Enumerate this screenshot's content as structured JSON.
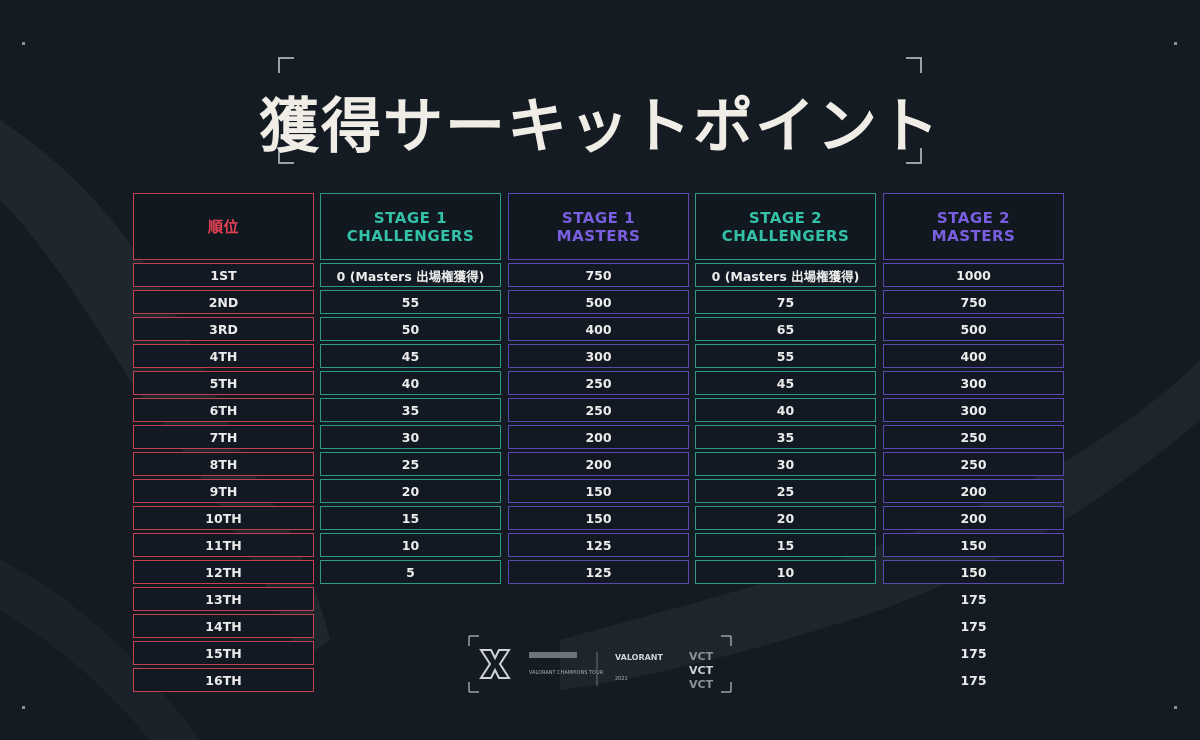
{
  "title": "獲得サーキットポイント",
  "colors": {
    "red": "#e94155",
    "teal": "#33c2a8",
    "purple": "#7a5fe0"
  },
  "columns": [
    {
      "header": [
        "順位"
      ],
      "color": "red",
      "rows": [
        "1ST",
        "2ND",
        "3RD",
        "4TH",
        "5TH",
        "6TH",
        "7TH",
        "8TH",
        "9TH",
        "10TH",
        "11TH",
        "12TH",
        "13TH",
        "14TH",
        "15TH",
        "16TH"
      ]
    },
    {
      "header": [
        "STAGE 1",
        "CHALLENGERS"
      ],
      "color": "teal",
      "rows": [
        "0 (Masters 出場権獲得)",
        "55",
        "50",
        "45",
        "40",
        "35",
        "30",
        "25",
        "20",
        "15",
        "10",
        "5"
      ]
    },
    {
      "header": [
        "STAGE 1",
        "MASTERS"
      ],
      "color": "purple",
      "rows": [
        "750",
        "500",
        "400",
        "300",
        "250",
        "250",
        "200",
        "200",
        "150",
        "150",
        "125",
        "125"
      ]
    },
    {
      "header": [
        "STAGE 2",
        "CHALLENGERS"
      ],
      "color": "teal",
      "rows": [
        "0 (Masters 出場権獲得)",
        "75",
        "65",
        "55",
        "45",
        "40",
        "35",
        "30",
        "25",
        "20",
        "15",
        "10"
      ]
    },
    {
      "header": [
        "STAGE 2",
        "MASTERS"
      ],
      "color": "purple",
      "rows": [
        "1000",
        "750",
        "500",
        "400",
        "300",
        "300",
        "250",
        "250",
        "200",
        "200",
        "150",
        "150"
      ],
      "unboxed_rows": [
        "175",
        "175",
        "175",
        "175"
      ]
    }
  ],
  "footer": {
    "vct_text": "VALORANT CHAMPIONS TOUR",
    "valorant_text": "VALORANT",
    "year": "2021",
    "vct_stack": [
      "VCT",
      "VCT",
      "VCT"
    ]
  }
}
